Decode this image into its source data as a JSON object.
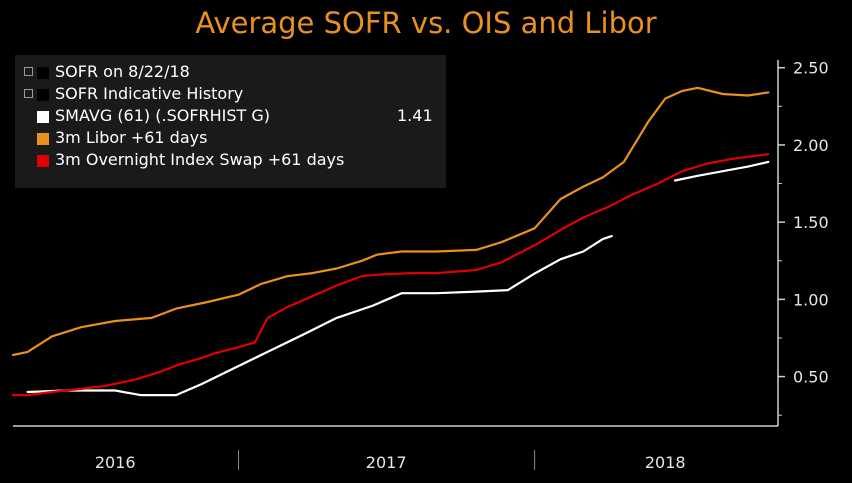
{
  "title": "Average SOFR vs. OIS and Libor",
  "legend": {
    "items": [
      {
        "label": "SOFR on 8/22/18",
        "kind": "toggle"
      },
      {
        "label": "SOFR Indicative History",
        "kind": "toggle"
      },
      {
        "label": "SMAVG (61) (.SOFRHIST G)",
        "kind": "series",
        "value": "1.41",
        "color": "#ffffff"
      },
      {
        "label": "3m Libor +61 days",
        "kind": "series",
        "color": "#e8911f"
      },
      {
        "label": "3m Overnight Index Swap +61 days",
        "kind": "series",
        "color": "#e00000"
      }
    ]
  },
  "chart_data": {
    "type": "line",
    "title": "Average SOFR vs. OIS and Libor",
    "xlabel": "",
    "ylabel": "",
    "x_ticks": [
      "2016",
      "2017",
      "2018"
    ],
    "y_ticks": [
      "0.50",
      "1.00",
      "1.50",
      "2.00",
      "2.50"
    ],
    "ylim": [
      0.18,
      2.55
    ],
    "xlim": [
      "2016-03-28",
      "2018-10-27"
    ],
    "grid": false,
    "legend_position": "top-left",
    "series": [
      {
        "name": "SMAVG (61) (.SOFRHIST G)",
        "color": "#ffffff",
        "segments": [
          [
            [
              "2016-04-15",
              0.4
            ],
            [
              "2016-06-01",
              0.41
            ],
            [
              "2016-08-01",
              0.41
            ],
            [
              "2016-09-01",
              0.38
            ],
            [
              "2016-10-15",
              0.38
            ],
            [
              "2016-11-15",
              0.45
            ],
            [
              "2016-12-20",
              0.54
            ],
            [
              "2017-02-01",
              0.65
            ],
            [
              "2017-03-20",
              0.77
            ],
            [
              "2017-05-01",
              0.88
            ],
            [
              "2017-06-15",
              0.96
            ],
            [
              "2017-07-20",
              1.04
            ],
            [
              "2017-09-01",
              1.04
            ],
            [
              "2017-10-20",
              1.05
            ],
            [
              "2017-11-28",
              1.06
            ],
            [
              "2018-01-01",
              1.17
            ],
            [
              "2018-02-01",
              1.26
            ],
            [
              "2018-03-01",
              1.31
            ],
            [
              "2018-03-25",
              1.39
            ],
            [
              "2018-04-05",
              1.41
            ]
          ],
          [
            [
              "2018-06-22",
              1.77
            ],
            [
              "2018-07-20",
              1.8
            ],
            [
              "2018-08-20",
              1.83
            ],
            [
              "2018-09-20",
              1.86
            ],
            [
              "2018-10-15",
              1.89
            ]
          ]
        ]
      },
      {
        "name": "3m Libor +61 days",
        "color": "#e8911f",
        "segments": [
          [
            [
              "2016-03-28",
              0.64
            ],
            [
              "2016-04-15",
              0.66
            ],
            [
              "2016-05-15",
              0.76
            ],
            [
              "2016-06-20",
              0.82
            ],
            [
              "2016-08-01",
              0.86
            ],
            [
              "2016-09-15",
              0.88
            ],
            [
              "2016-10-15",
              0.94
            ],
            [
              "2016-11-20",
              0.98
            ],
            [
              "2016-12-31",
              1.03
            ],
            [
              "2017-01-28",
              1.1
            ],
            [
              "2017-03-01",
              1.15
            ],
            [
              "2017-04-01",
              1.17
            ],
            [
              "2017-05-01",
              1.2
            ],
            [
              "2017-06-01",
              1.25
            ],
            [
              "2017-06-20",
              1.29
            ],
            [
              "2017-07-20",
              1.31
            ],
            [
              "2017-09-01",
              1.31
            ],
            [
              "2017-10-20",
              1.32
            ],
            [
              "2017-11-20",
              1.37
            ],
            [
              "2017-12-31",
              1.46
            ],
            [
              "2018-02-01",
              1.65
            ],
            [
              "2018-03-01",
              1.73
            ],
            [
              "2018-03-25",
              1.79
            ],
            [
              "2018-04-20",
              1.89
            ],
            [
              "2018-05-20",
              2.15
            ],
            [
              "2018-06-10",
              2.3
            ],
            [
              "2018-07-01",
              2.35
            ],
            [
              "2018-07-20",
              2.37
            ],
            [
              "2018-08-20",
              2.33
            ],
            [
              "2018-09-20",
              2.32
            ],
            [
              "2018-10-15",
              2.34
            ]
          ]
        ]
      },
      {
        "name": "3m Overnight Index Swap +61 days",
        "color": "#e00000",
        "segments": [
          [
            [
              "2016-03-28",
              0.38
            ],
            [
              "2016-04-15",
              0.38
            ],
            [
              "2016-05-15",
              0.4
            ],
            [
              "2016-06-20",
              0.42
            ],
            [
              "2016-07-20",
              0.44
            ],
            [
              "2016-08-25",
              0.48
            ],
            [
              "2016-09-25",
              0.53
            ],
            [
              "2016-10-20",
              0.58
            ],
            [
              "2016-11-15",
              0.62
            ],
            [
              "2016-12-01",
              0.65
            ],
            [
              "2016-12-31",
              0.69
            ],
            [
              "2017-01-20",
              0.72
            ],
            [
              "2017-02-05",
              0.88
            ],
            [
              "2017-03-01",
              0.95
            ],
            [
              "2017-04-01",
              1.02
            ],
            [
              "2017-05-01",
              1.09
            ],
            [
              "2017-06-01",
              1.15
            ],
            [
              "2017-06-20",
              1.16
            ],
            [
              "2017-08-01",
              1.17
            ],
            [
              "2017-09-01",
              1.17
            ],
            [
              "2017-10-20",
              1.19
            ],
            [
              "2017-11-20",
              1.24
            ],
            [
              "2017-12-31",
              1.35
            ],
            [
              "2018-02-01",
              1.45
            ],
            [
              "2018-03-01",
              1.53
            ],
            [
              "2018-04-01",
              1.6
            ],
            [
              "2018-05-01",
              1.68
            ],
            [
              "2018-06-01",
              1.75
            ],
            [
              "2018-07-01",
              1.83
            ],
            [
              "2018-08-01",
              1.88
            ],
            [
              "2018-09-01",
              1.91
            ],
            [
              "2018-10-15",
              1.94
            ]
          ]
        ]
      }
    ]
  }
}
